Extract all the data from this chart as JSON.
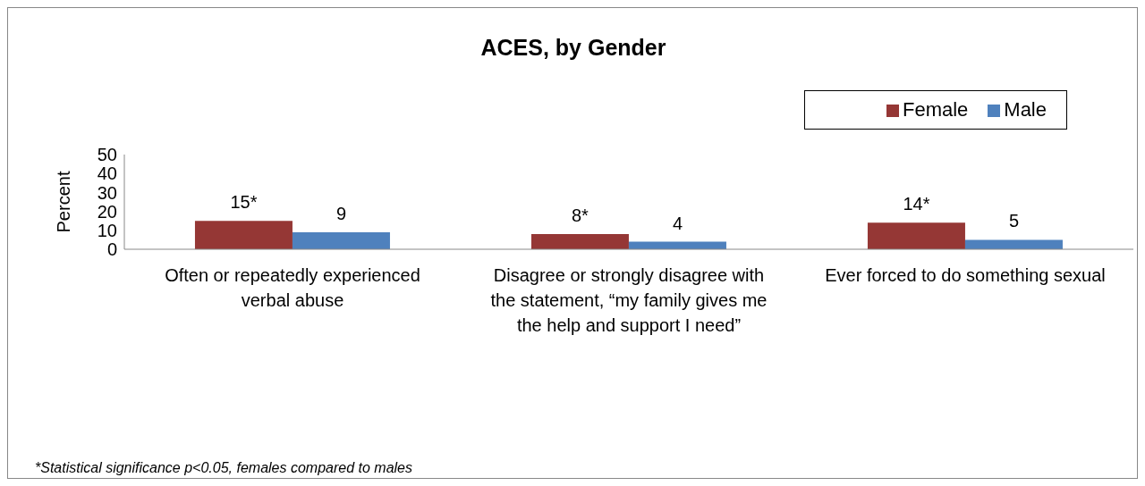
{
  "chart_data": {
    "type": "bar",
    "title": "ACES, by Gender",
    "ylabel": "Percent",
    "categories": [
      "Often or repeatedly experienced verbal abuse",
      "Disagree or strongly disagree with the statement, “my family gives me the help and support I need”",
      "Ever forced to do something sexual"
    ],
    "series": [
      {
        "name": "Female",
        "color": "#953735",
        "values": [
          15,
          8,
          14
        ],
        "value_labels": [
          "15*",
          "8*",
          "14*"
        ]
      },
      {
        "name": "Male",
        "color": "#4f81bd",
        "values": [
          9,
          4,
          5
        ],
        "value_labels": [
          "9",
          "4",
          "5"
        ]
      }
    ],
    "ylim": [
      0,
      50
    ],
    "yticks": [
      0,
      10,
      20,
      30,
      40,
      50
    ],
    "grid": false,
    "legend": "top right",
    "annotations": [
      "*Statistical significance p<0.05, females compared to males"
    ]
  }
}
